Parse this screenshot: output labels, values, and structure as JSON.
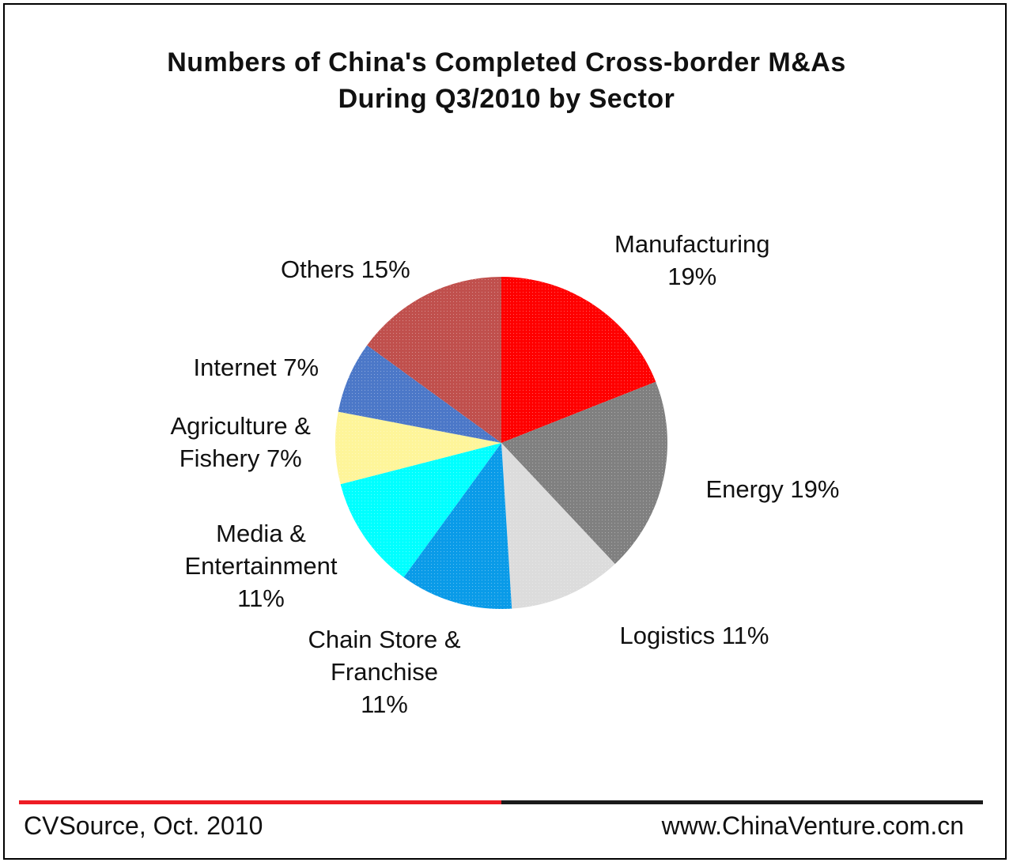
{
  "title_line1": "Numbers of China's Completed Cross-border M&As",
  "title_line2": "During Q3/2010 by Sector",
  "footer": {
    "source": "CVSource, Oct. 2010",
    "website": "www.ChinaVenture.com.cn"
  },
  "chart_data": {
    "type": "pie",
    "title": "Numbers of China's Completed Cross-border M&As During Q3/2010 by Sector",
    "slices": [
      {
        "label": "Manufacturing",
        "value": 19,
        "color": "#ff0000",
        "text": [
          "Manufacturing",
          "19%"
        ]
      },
      {
        "label": "Energy",
        "value": 19,
        "color": "#808080",
        "text": [
          "Energy 19%"
        ]
      },
      {
        "label": "Logistics",
        "value": 11,
        "color": "#dcdcdc",
        "text": [
          "Logistics 11%"
        ]
      },
      {
        "label": "Chain Store & Franchise",
        "value": 11,
        "color": "#0a9be8",
        "text": [
          "Chain Store &",
          "Franchise",
          "11%"
        ]
      },
      {
        "label": "Media & Entertainment",
        "value": 11,
        "color": "#00ffff",
        "text": [
          "Media &",
          "Entertainment",
          "11%"
        ]
      },
      {
        "label": "Agriculture & Fishery",
        "value": 7,
        "color": "#fef59a",
        "text": [
          "Agriculture &",
          "Fishery 7%"
        ]
      },
      {
        "label": "Internet",
        "value": 7,
        "color": "#4c78c8",
        "text": [
          "Internet 7%"
        ]
      },
      {
        "label": "Others",
        "value": 15,
        "color": "#c0504d",
        "text": [
          "Others 15%"
        ]
      }
    ],
    "start_angle": "12 o'clock",
    "direction": "clockwise",
    "legend": "none"
  }
}
